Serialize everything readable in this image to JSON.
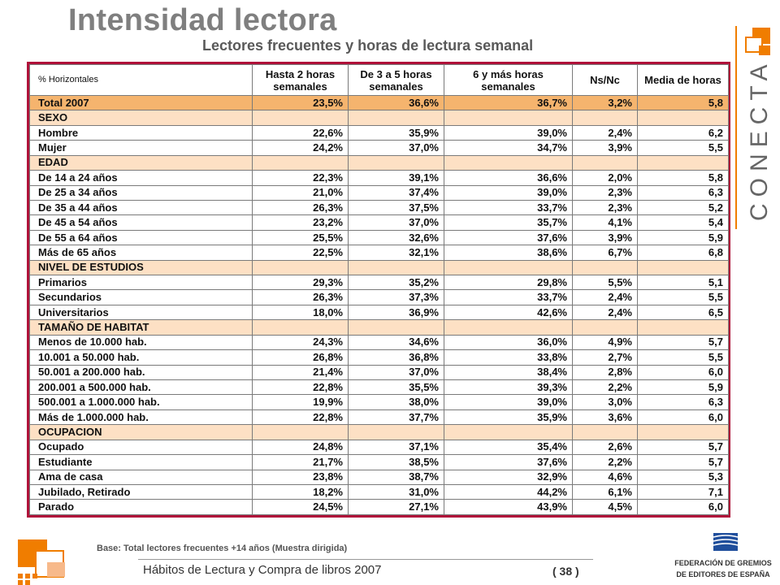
{
  "title": "Intensidad lectora",
  "subtitle": "Lectores frecuentes y horas de lectura semanal",
  "logo_text": "CONECTA",
  "table": {
    "corner": "% Horizontales",
    "headers": [
      "Hasta 2 horas semanales",
      "De 3 a 5 horas semanales",
      "6 y más horas semanales",
      "Ns/Nc",
      "Media de horas"
    ],
    "rows": [
      {
        "type": "total",
        "label": "Total 2007",
        "values": [
          "23,5%",
          "36,6%",
          "36,7%",
          "3,2%",
          "5,8"
        ]
      },
      {
        "type": "section",
        "label": "SEXO"
      },
      {
        "type": "data",
        "label": "Hombre",
        "values": [
          "22,6%",
          "35,9%",
          "39,0%",
          "2,4%",
          "6,2"
        ]
      },
      {
        "type": "data",
        "label": "Mujer",
        "values": [
          "24,2%",
          "37,0%",
          "34,7%",
          "3,9%",
          "5,5"
        ]
      },
      {
        "type": "section",
        "label": "EDAD"
      },
      {
        "type": "data",
        "label": "De 14 a 24 años",
        "values": [
          "22,3%",
          "39,1%",
          "36,6%",
          "2,0%",
          "5,8"
        ]
      },
      {
        "type": "data",
        "label": "De 25 a 34 años",
        "values": [
          "21,0%",
          "37,4%",
          "39,0%",
          "2,3%",
          "6,3"
        ]
      },
      {
        "type": "data",
        "label": "De 35 a 44 años",
        "values": [
          "26,3%",
          "37,5%",
          "33,7%",
          "2,3%",
          "5,2"
        ]
      },
      {
        "type": "data",
        "label": "De 45 a 54 años",
        "values": [
          "23,2%",
          "37,0%",
          "35,7%",
          "4,1%",
          "5,4"
        ]
      },
      {
        "type": "data",
        "label": "De 55 a 64 años",
        "values": [
          "25,5%",
          "32,6%",
          "37,6%",
          "3,9%",
          "5,9"
        ]
      },
      {
        "type": "data",
        "label": "Más de 65 años",
        "values": [
          "22,5%",
          "32,1%",
          "38,6%",
          "6,7%",
          "6,8"
        ]
      },
      {
        "type": "section",
        "label": "NIVEL DE ESTUDIOS"
      },
      {
        "type": "data",
        "label": "Primarios",
        "values": [
          "29,3%",
          "35,2%",
          "29,8%",
          "5,5%",
          "5,1"
        ]
      },
      {
        "type": "data",
        "label": "Secundarios",
        "values": [
          "26,3%",
          "37,3%",
          "33,7%",
          "2,4%",
          "5,5"
        ]
      },
      {
        "type": "data",
        "label": "Universitarios",
        "values": [
          "18,0%",
          "36,9%",
          "42,6%",
          "2,4%",
          "6,5"
        ]
      },
      {
        "type": "section",
        "label": "TAMAÑO DE HABITAT"
      },
      {
        "type": "data",
        "label": "Menos de 10.000 hab.",
        "values": [
          "24,3%",
          "34,6%",
          "36,0%",
          "4,9%",
          "5,7"
        ]
      },
      {
        "type": "data",
        "label": "10.001 a 50.000 hab.",
        "values": [
          "26,8%",
          "36,8%",
          "33,8%",
          "2,7%",
          "5,5"
        ]
      },
      {
        "type": "data",
        "label": "50.001 a 200.000 hab.",
        "values": [
          "21,4%",
          "37,0%",
          "38,4%",
          "2,8%",
          "6,0"
        ]
      },
      {
        "type": "data",
        "label": "200.001 a 500.000 hab.",
        "values": [
          "22,8%",
          "35,5%",
          "39,3%",
          "2,2%",
          "5,9"
        ]
      },
      {
        "type": "data",
        "label": "500.001 a 1.000.000 hab.",
        "values": [
          "19,9%",
          "38,0%",
          "39,0%",
          "3,0%",
          "6,3"
        ]
      },
      {
        "type": "data",
        "label": "Más de 1.000.000 hab.",
        "values": [
          "22,8%",
          "37,7%",
          "35,9%",
          "3,6%",
          "6,0"
        ]
      },
      {
        "type": "section",
        "label": "OCUPACION"
      },
      {
        "type": "data",
        "label": "Ocupado",
        "values": [
          "24,8%",
          "37,1%",
          "35,4%",
          "2,6%",
          "5,7"
        ]
      },
      {
        "type": "data",
        "label": "Estudiante",
        "values": [
          "21,7%",
          "38,5%",
          "37,6%",
          "2,2%",
          "5,7"
        ]
      },
      {
        "type": "data",
        "label": "Ama de casa",
        "values": [
          "23,8%",
          "38,7%",
          "32,9%",
          "4,6%",
          "5,3"
        ]
      },
      {
        "type": "data",
        "label": "Jubilado, Retirado",
        "values": [
          "18,2%",
          "31,0%",
          "44,2%",
          "6,1%",
          "7,1"
        ]
      },
      {
        "type": "data",
        "label": "Parado",
        "values": [
          "24,5%",
          "27,1%",
          "43,9%",
          "4,5%",
          "6,0"
        ]
      }
    ]
  },
  "base_note": "Base:  Total lectores frecuentes  +14 años (Muestra  dirigida)",
  "footer": "Hábitos de Lectura y Compra de libros 2007",
  "page": "( 38 )",
  "fge_logo": {
    "line1": "FEDERACIÓN DE GREMIOS",
    "line2": "DE EDITORES DE ESPAÑA"
  },
  "colors": {
    "accent": "#f07d00",
    "border": "#b0123a",
    "total_row": "#f5b46e",
    "section_row": "#fde0c4",
    "fge_blue": "#1f4e9c"
  }
}
